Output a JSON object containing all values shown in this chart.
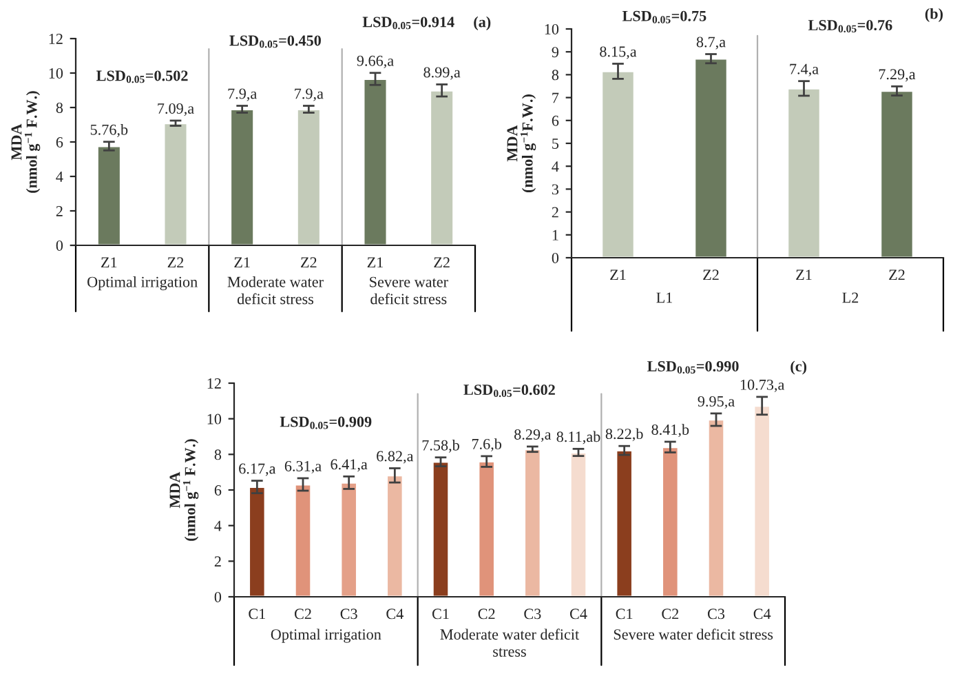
{
  "chart_data": [
    {
      "type": "bar",
      "ylabel": "MDA\n(nmol g$^{−1}$ F.W.)",
      "categories": [
        "Z1",
        "Z2",
        "Z1",
        "Z2",
        "Z1",
        "Z2"
      ],
      "values": [
        5.76,
        7.09,
        7.9,
        7.9,
        9.66,
        8.99
      ],
      "errors": [
        0.25,
        0.15,
        0.2,
        0.2,
        0.35,
        0.35
      ],
      "colors": [
        "#6b7a5e",
        "#c3cbb9",
        "#6b7a5e",
        "#c3cbb9",
        "#6b7a5e",
        "#c3cbb9"
      ],
      "value_labels": [
        "5.76,b",
        "7.09,a",
        "7.9,a",
        "7.9,a",
        "9.66,a",
        "8.99,a"
      ],
      "ylim": [
        0,
        12
      ],
      "yticks": [
        0,
        2,
        4,
        6,
        8,
        10,
        12
      ],
      "grid": false,
      "annotations": [
        "Optimal irrigation",
        "Moderate water\ndeficit stress",
        "Severe water\ndeficit stress",
        "LSD$_{0.05}$=0.502",
        "LSD$_{0.05}$=0.450",
        "LSD$_{0.05}$=0.914",
        "(a)"
      ]
    },
    {
      "type": "bar",
      "ylabel": "MDA\n(nmol g$^{−1}$F.W.)",
      "categories": [
        "Z1",
        "Z2",
        "Z1",
        "Z2"
      ],
      "values": [
        8.15,
        8.7,
        7.4,
        7.29
      ],
      "errors": [
        0.33,
        0.2,
        0.32,
        0.2
      ],
      "colors": [
        "#c3cbb9",
        "#6b7a5e",
        "#c3cbb9",
        "#6b7a5e"
      ],
      "value_labels": [
        "8.15,a",
        "8.7,a",
        "7.4,a",
        "7.29,a"
      ],
      "ylim": [
        0,
        10
      ],
      "yticks": [
        0,
        1,
        2,
        3,
        4,
        5,
        6,
        7,
        8,
        9,
        10
      ],
      "grid": false,
      "annotations": [
        "L1",
        "L2",
        "LSD$_{0.05}$=0.75",
        "LSD$_{0.05}$=0.76",
        "(b)"
      ]
    },
    {
      "type": "bar",
      "ylabel": "MDA\n(nmol g$^{−1}$ F.W.)",
      "categories": [
        "C1",
        "C2",
        "C3",
        "C4",
        "C1",
        "C2",
        "C3",
        "C4",
        "C1",
        "C2",
        "C3",
        "C4"
      ],
      "values": [
        6.17,
        6.31,
        6.41,
        6.82,
        7.58,
        7.6,
        8.29,
        8.11,
        8.22,
        8.41,
        9.95,
        10.73
      ],
      "errors": [
        0.35,
        0.35,
        0.35,
        0.4,
        0.25,
        0.3,
        0.15,
        0.2,
        0.25,
        0.3,
        0.35,
        0.5
      ],
      "colors": [
        "#8b3e1e",
        "#e0937a",
        "#e4a088",
        "#ebb8a2",
        "#8b3e1e",
        "#e0937a",
        "#ebb8a2",
        "#f5dccf",
        "#8b3e1e",
        "#e0937a",
        "#ebb8a2",
        "#f5dccf"
      ],
      "value_labels": [
        "6.17,a",
        "6.31,a",
        "6.41,a",
        "6.82,a",
        "7.58,b",
        "7.6,b",
        "8.29,a",
        "8.11,ab",
        "8.22,b",
        "8.41,b",
        "9.95,a",
        "10.73,a"
      ],
      "ylim": [
        0,
        12
      ],
      "yticks": [
        0,
        2,
        4,
        6,
        8,
        10,
        12
      ],
      "grid": false,
      "annotations": [
        "Optimal irrigation",
        "Moderate water deficit\nstress",
        "Severe water deficit stress",
        "LSD$_{0.05}$=0.909",
        "LSD$_{0.05}$=0.602",
        "LSD$_{0.05}$=0.990",
        "(c)"
      ]
    }
  ]
}
